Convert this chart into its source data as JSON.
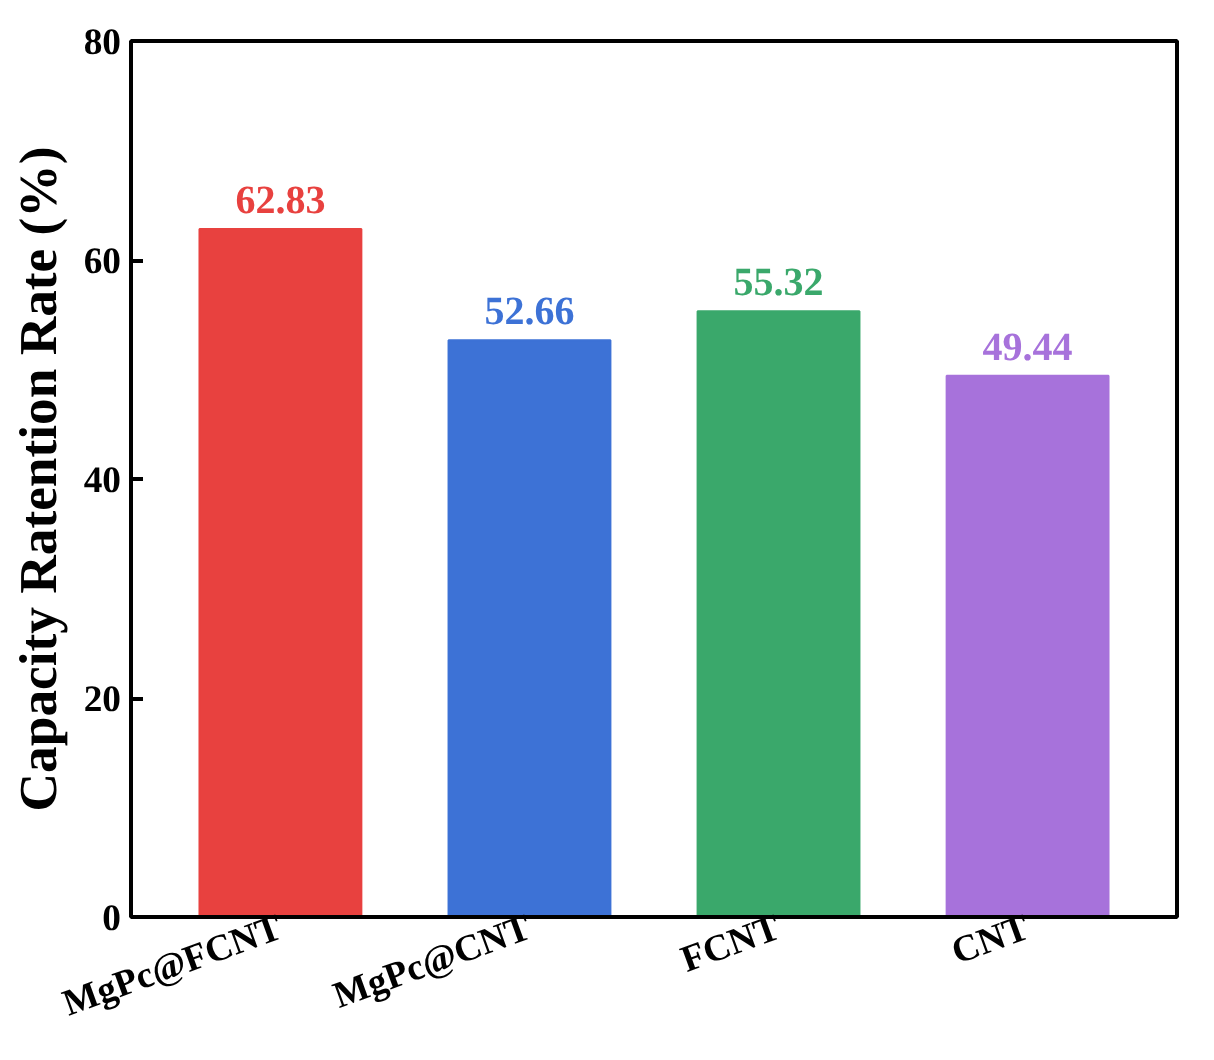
{
  "chart_data": {
    "type": "bar",
    "ylabel": "Capacity Ratention Rate (%)",
    "categories": [
      "MgPc@FCNT",
      "MgPc@CNT",
      "FCNT",
      "CNT"
    ],
    "values": [
      62.83,
      52.66,
      55.32,
      49.44
    ],
    "colors": [
      "#e8413f",
      "#3d72d6",
      "#3aa86b",
      "#a772db"
    ],
    "ylim": [
      0,
      80
    ],
    "yticks": [
      0,
      20,
      40,
      60,
      80
    ],
    "data_labels": true,
    "grid": false
  }
}
